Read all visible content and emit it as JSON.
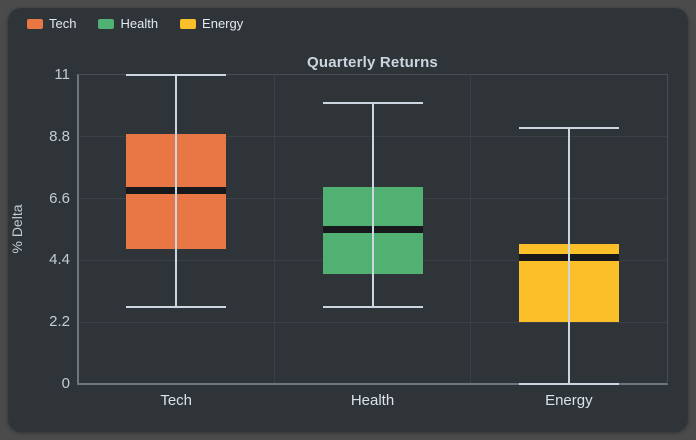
{
  "window": {
    "outer_background": "#4b4b4b",
    "card_background": "#2f3439"
  },
  "legend": {
    "position": "top-left",
    "items": [
      {
        "label": "Tech",
        "color": "#e97745"
      },
      {
        "label": "Health",
        "color": "#50b173"
      },
      {
        "label": "Energy",
        "color": "#fabf29"
      }
    ]
  },
  "chart_data": {
    "type": "boxplot",
    "title": "Quarterly Returns",
    "xlabel": "",
    "ylabel": "% Delta",
    "categories": [
      "Tech",
      "Health",
      "Energy"
    ],
    "yticks": [
      0,
      2.2,
      4.4,
      6.6,
      8.8,
      11
    ],
    "ylim": [
      0,
      11
    ],
    "grid": true,
    "legend_position": "top-left",
    "series": [
      {
        "name": "Tech",
        "color": "#e97745",
        "min": 2.75,
        "q1": 4.8,
        "median": 6.9,
        "q3": 8.9,
        "max": 11.0
      },
      {
        "name": "Health",
        "color": "#50b173",
        "min": 2.75,
        "q1": 3.9,
        "median": 5.5,
        "q3": 7.0,
        "max": 10.0
      },
      {
        "name": "Energy",
        "color": "#fabf29",
        "min": 0.0,
        "q1": 2.2,
        "median": 4.5,
        "q3": 5.0,
        "max": 9.1
      }
    ],
    "style_colors": {
      "whisker": "#ccd6e0",
      "median_band": "#17191d",
      "gridline": "#3a4046",
      "axis_line": "#6e767f",
      "plot_border": "#484e54",
      "tick_text": "#c3ccd6",
      "title_text": "#ccd6e0"
    }
  }
}
